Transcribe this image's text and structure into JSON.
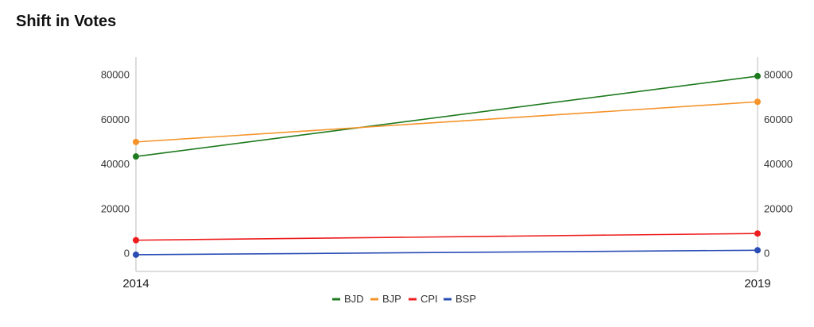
{
  "title": "Shift in Votes",
  "chart_data": {
    "type": "line",
    "title": "Shift in Votes",
    "categories": [
      "2014",
      "2019"
    ],
    "ylim": [
      -8000,
      88000
    ],
    "yticks": [
      "0",
      "20000",
      "40000",
      "60000",
      "80000"
    ],
    "ytick_values": [
      0,
      20000,
      40000,
      60000,
      80000
    ],
    "legend_position": "bottom",
    "grid": false,
    "series": [
      {
        "name": "BJD",
        "color": "#1e7a1e",
        "values": [
          43500,
          79500
        ]
      },
      {
        "name": "BJP",
        "color": "#f5932a",
        "values": [
          50000,
          68000
        ]
      },
      {
        "name": "CPI",
        "color": "#ee1c1c",
        "values": [
          6000,
          9000
        ]
      },
      {
        "name": "BSP",
        "color": "#2a4db5",
        "values": [
          -500,
          1500
        ]
      }
    ]
  }
}
